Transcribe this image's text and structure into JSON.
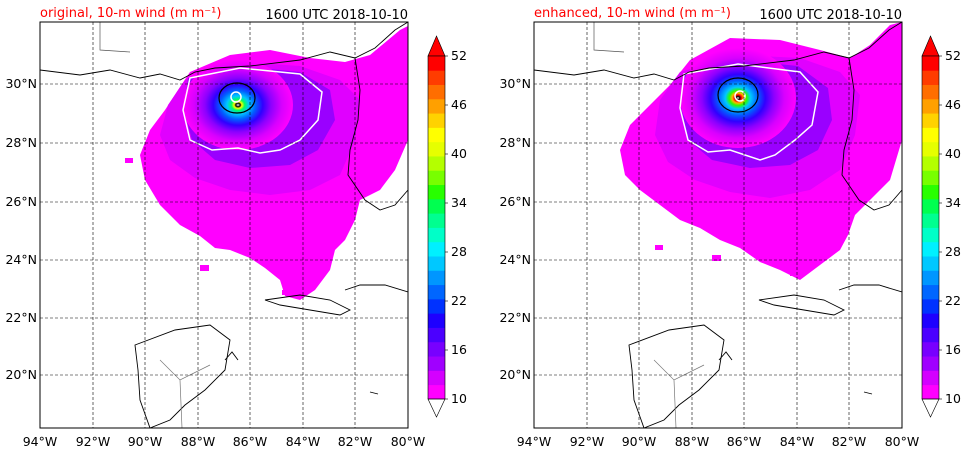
{
  "figure": {
    "panels": [
      {
        "id": "original",
        "title_left": "original, 10-m wind (m m⁻¹)",
        "title_right": "1600 UTC 2018-10-10"
      },
      {
        "id": "enhanced",
        "title_left": "enhanced, 10-m wind (m m⁻¹)",
        "title_right": "1600 UTC 2018-10-10"
      }
    ],
    "lon_labels": [
      "94°W",
      "92°W",
      "90°W",
      "88°W",
      "86°W",
      "84°W",
      "82°W",
      "80°W"
    ],
    "lat_labels": [
      "30°N",
      "28°N",
      "26°N",
      "24°N",
      "22°N",
      "20°N"
    ],
    "colorbar_labels": [
      "52",
      "46",
      "40",
      "34",
      "28",
      "22",
      "16",
      "10"
    ],
    "colorbar_colors": [
      "#ff00ff",
      "#d400ff",
      "#a000ff",
      "#7800ff",
      "#4b00ff",
      "#1e00ff",
      "#0032ff",
      "#0066ff",
      "#0096ff",
      "#00c8ff",
      "#00f0ff",
      "#00ffc8",
      "#00ff90",
      "#00ff50",
      "#28ff00",
      "#78ff00",
      "#b4ff00",
      "#e6ff00",
      "#ffff00",
      "#ffd200",
      "#ffa000",
      "#ff6e00",
      "#ff3c00",
      "#ff0000"
    ],
    "colors": {
      "title_red": "#ff0000",
      "land_outline": "#000000",
      "grid": "#000000",
      "contour_white": "#ffffff"
    }
  },
  "chart_data": {
    "type": "heatmap",
    "variable": "10-m wind",
    "time": "1600 UTC 2018-10-10",
    "lon_range_degW": [
      94,
      80
    ],
    "lat_range_degN": [
      18.2,
      32
    ],
    "colorbar": {
      "min": 10,
      "max": 52,
      "ticks": [
        10,
        16,
        22,
        28,
        34,
        40,
        46,
        52
      ],
      "extend": "both"
    },
    "storm_center": {
      "lon": -86.5,
      "lat": 29.5
    },
    "panels": [
      {
        "name": "original",
        "max_wind_approx": 46
      },
      {
        "name": "enhanced",
        "max_wind_approx": 52
      }
    ]
  }
}
